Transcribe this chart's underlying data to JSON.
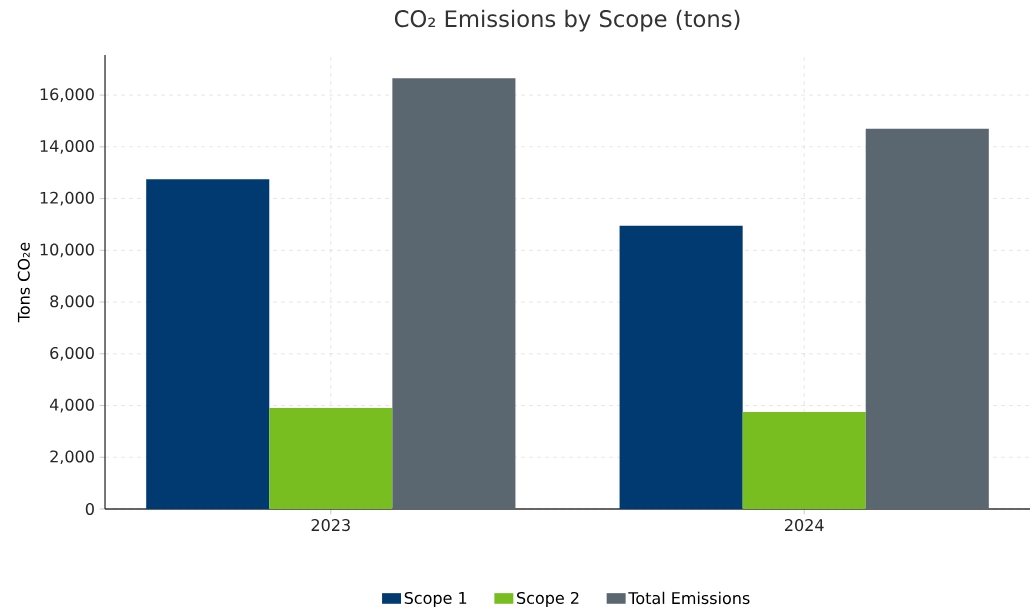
{
  "chart_data": {
    "type": "bar",
    "title": "CO₂ Emissions by Scope (tons)",
    "ylabel": "Tons CO₂e",
    "categories": [
      "2023",
      "2024"
    ],
    "series": [
      {
        "name": "Scope 1",
        "color": "#003a70",
        "values": [
          12750,
          10950
        ]
      },
      {
        "name": "Scope 2",
        "color": "#78be20",
        "values": [
          3900,
          3750
        ]
      },
      {
        "name": "Total Emissions",
        "color": "#5b6770",
        "values": [
          16650,
          14700
        ]
      }
    ],
    "ylim": [
      0,
      17550
    ],
    "yticks": [
      0,
      {
        "value": 2000,
        "label": "2,000"
      },
      {
        "value": 4000,
        "label": "4,000"
      },
      {
        "value": 6000,
        "label": "6,000"
      },
      {
        "value": 8000,
        "label": "8,000"
      },
      {
        "value": 10000,
        "label": "10,000"
      },
      {
        "value": 12000,
        "label": "12,000"
      },
      {
        "value": 14000,
        "label": "14,000"
      },
      {
        "value": 16000,
        "label": "16,000"
      }
    ],
    "grid": true,
    "legend": "bottom"
  }
}
